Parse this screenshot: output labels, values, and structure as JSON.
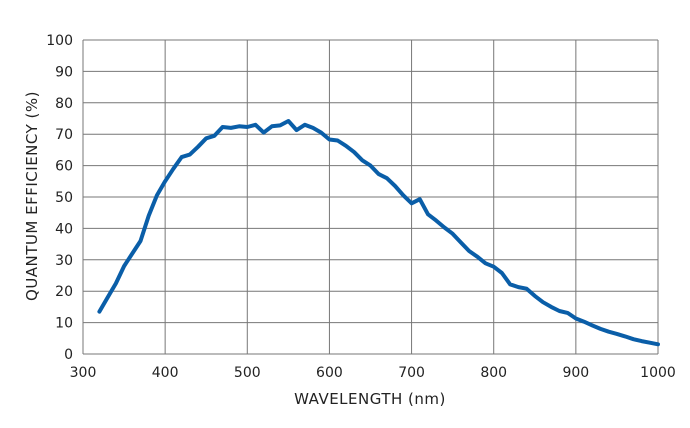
{
  "chart_data": {
    "type": "line",
    "title": "",
    "xlabel": "WAVELENGTH (nm)",
    "ylabel": "QUANTUM EFFICIENCY (%)",
    "xlim": [
      300,
      1000
    ],
    "ylim": [
      0,
      100
    ],
    "xticks": [
      300,
      400,
      500,
      600,
      700,
      800,
      900,
      1000
    ],
    "yticks": [
      0,
      10,
      20,
      30,
      40,
      50,
      60,
      70,
      80,
      90,
      100
    ],
    "grid": true,
    "legend": "none",
    "colors": {
      "line": "#0a5ea8",
      "grid": "#777777",
      "axis": "#555555"
    },
    "series": [
      {
        "x": [
          320,
          330,
          340,
          350,
          360,
          370,
          380,
          390,
          400,
          410,
          420,
          430,
          440,
          450,
          460,
          470,
          480,
          490,
          500,
          510,
          520,
          530,
          540,
          550,
          560,
          570,
          580,
          590,
          600,
          610,
          620,
          630,
          640,
          650,
          660,
          670,
          680,
          690,
          700,
          710,
          720,
          730,
          740,
          750,
          760,
          770,
          780,
          790,
          800,
          810,
          820,
          830,
          840,
          850,
          860,
          870,
          880,
          890,
          900,
          910,
          920,
          930,
          940,
          950,
          960,
          970,
          980,
          990,
          1000
        ],
        "y": [
          13.5,
          18,
          22.5,
          28,
          32,
          36,
          44,
          50.5,
          55,
          59,
          62.7,
          63.5,
          66,
          68.7,
          69.5,
          72.3,
          72,
          72.5,
          72.3,
          73,
          70.5,
          72.5,
          72.8,
          74.2,
          71.3,
          73,
          72,
          70.5,
          68.3,
          68,
          66.3,
          64.3,
          61.7,
          60,
          57.3,
          56,
          53.5,
          50.5,
          48,
          49.3,
          44.5,
          42.5,
          40.3,
          38.3,
          35.5,
          32.8,
          31,
          28.9,
          27.8,
          25.8,
          22.2,
          21.3,
          20.8,
          18.5,
          16.5,
          15,
          13.7,
          13.1,
          11.3,
          10.3,
          9.1,
          8,
          7.1,
          6.4,
          5.6,
          4.7,
          4.1,
          3.6,
          3.1
        ]
      }
    ]
  }
}
